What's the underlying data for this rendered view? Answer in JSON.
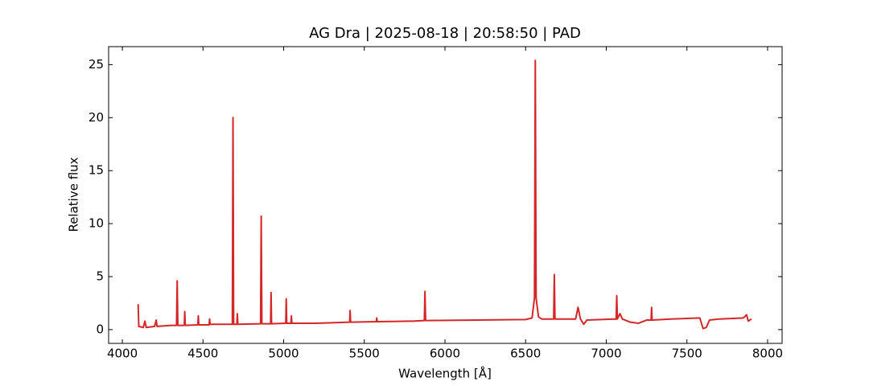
{
  "chart_data": {
    "type": "line",
    "title": "AG Dra | 2025-08-18 | 20:58:50 | PAD",
    "x_label": "Wavelength [Å]",
    "y_label": "Relative flux",
    "color": "#d62728",
    "xlim": [
      3915,
      8090
    ],
    "ylim": [
      -1.3,
      26.7
    ],
    "xticks": [
      4000,
      4500,
      5000,
      5500,
      6000,
      6500,
      7000,
      7500,
      8000
    ],
    "yticks": [
      0,
      5,
      10,
      15,
      20,
      25
    ],
    "grid": false,
    "x": [
      4098,
      4102,
      4130,
      4140,
      4148,
      4200,
      4210,
      4215,
      4300,
      4336,
      4340,
      4344,
      4384,
      4387,
      4390,
      4468,
      4471,
      4474,
      4538,
      4541,
      4544,
      4682,
      4686,
      4690,
      4710,
      4713,
      4716,
      4857,
      4861,
      4865,
      4919,
      4922,
      4925,
      5013,
      5016,
      5019,
      5045,
      5048,
      5051,
      5200,
      5409,
      5412,
      5415,
      5574,
      5577,
      5580,
      5800,
      5872,
      5876,
      5880,
      6200,
      6500,
      6540,
      6555,
      6560,
      6565,
      6580,
      6600,
      6674,
      6678,
      6682,
      6810,
      6825,
      6840,
      6860,
      6880,
      7061,
      7065,
      7069,
      7085,
      7100,
      7150,
      7200,
      7250,
      7278,
      7281,
      7284,
      7400,
      7580,
      7600,
      7620,
      7640,
      7700,
      7850,
      7870,
      7880,
      7900
    ],
    "values": [
      2.4,
      0.3,
      0.2,
      0.8,
      0.2,
      0.3,
      0.9,
      0.3,
      0.4,
      0.4,
      4.6,
      0.4,
      0.4,
      1.7,
      0.4,
      0.45,
      1.3,
      0.45,
      0.45,
      1.0,
      0.5,
      0.5,
      20.0,
      0.5,
      0.5,
      1.5,
      0.5,
      0.55,
      10.7,
      0.55,
      0.55,
      3.5,
      0.55,
      0.6,
      2.9,
      0.6,
      0.6,
      1.3,
      0.6,
      0.6,
      0.7,
      1.8,
      0.7,
      0.75,
      1.1,
      0.75,
      0.8,
      0.85,
      3.6,
      0.85,
      0.9,
      0.95,
      1.1,
      3,
      25.4,
      3,
      1.2,
      1.0,
      1.0,
      5.2,
      1.0,
      1.0,
      2.1,
      1.0,
      0.5,
      0.9,
      1.0,
      3.2,
      1.0,
      1.5,
      1.0,
      0.7,
      0.6,
      0.9,
      0.9,
      2.1,
      0.9,
      1.0,
      1.1,
      0.1,
      0.2,
      0.9,
      1.0,
      1.1,
      1.4,
      0.8,
      1.0
    ]
  }
}
